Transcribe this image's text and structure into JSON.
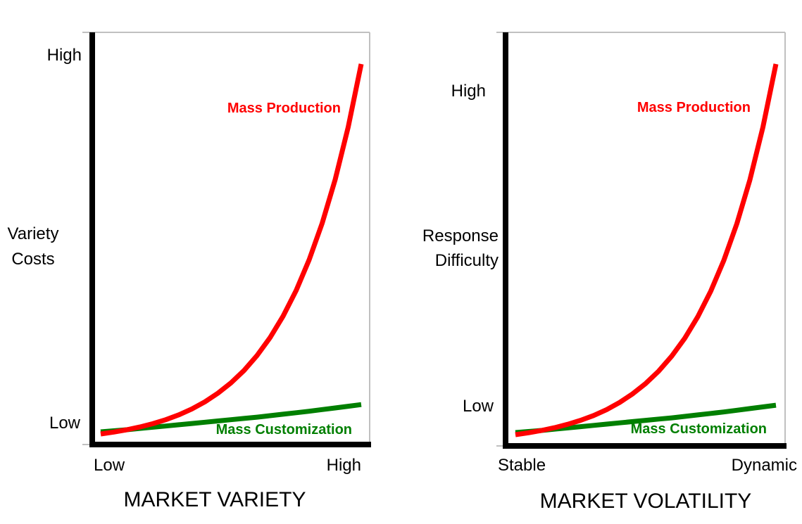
{
  "colors": {
    "mass_production": "#ff0000",
    "mass_customization": "#007f00",
    "axis": "#000000",
    "frame": "#c0c0c0"
  },
  "chart_data": [
    {
      "type": "line",
      "title": "MARKET VARIETY",
      "ylabel": [
        "Variety",
        "Costs"
      ],
      "x_tick_labels": [
        "Low",
        "High"
      ],
      "y_tick_labels": [
        "Low",
        "High"
      ],
      "x": [
        0,
        0.5,
        1,
        1.5,
        2,
        2.5,
        3,
        3.5,
        4,
        4.5,
        5,
        5.5,
        6,
        6.5,
        7,
        7.5,
        8,
        8.5,
        9,
        9.5,
        10
      ],
      "series": [
        {
          "name": "Mass Production",
          "color": "#ff0000",
          "values": [
            0.1,
            0.19,
            0.3,
            0.43,
            0.59,
            0.78,
            1.01,
            1.29,
            1.63,
            2.04,
            2.53,
            3.12,
            3.83,
            4.68,
            5.7,
            6.92,
            8.38,
            10.12,
            12.2,
            14.7,
            17.7
          ]
        },
        {
          "name": "Mass Customization",
          "color": "#007f00",
          "values": [
            0.2,
            0.25,
            0.3,
            0.36,
            0.42,
            0.48,
            0.54,
            0.6,
            0.66,
            0.72,
            0.78,
            0.84,
            0.9,
            0.97,
            1.04,
            1.11,
            1.18,
            1.26,
            1.34,
            1.42,
            1.5
          ]
        }
      ],
      "ylim": [
        0,
        18.8
      ],
      "xlim": [
        0,
        10.4
      ],
      "grid": false,
      "legend": "inline-labels"
    },
    {
      "type": "line",
      "title": "MARKET VOLATILITY",
      "ylabel": [
        "Response",
        "Difficulty"
      ],
      "x_tick_labels": [
        "Stable",
        "Dynamic"
      ],
      "y_tick_labels": [
        "Low",
        "High"
      ],
      "x": [
        0,
        0.5,
        1,
        1.5,
        2,
        2.5,
        3,
        3.5,
        4,
        4.5,
        5,
        5.5,
        6,
        6.5,
        7,
        7.5,
        8,
        8.5,
        9,
        9.5,
        10
      ],
      "series": [
        {
          "name": "Mass Production",
          "color": "#ff0000",
          "values": [
            0.1,
            0.19,
            0.3,
            0.43,
            0.59,
            0.78,
            1.01,
            1.29,
            1.63,
            2.04,
            2.53,
            3.12,
            3.83,
            4.68,
            5.7,
            6.92,
            8.38,
            10.12,
            12.2,
            14.7,
            17.7
          ]
        },
        {
          "name": "Mass Customization",
          "color": "#007f00",
          "values": [
            0.2,
            0.25,
            0.3,
            0.36,
            0.42,
            0.48,
            0.54,
            0.6,
            0.66,
            0.72,
            0.78,
            0.84,
            0.9,
            0.97,
            1.04,
            1.11,
            1.18,
            1.26,
            1.34,
            1.42,
            1.5
          ]
        }
      ],
      "ylim": [
        0,
        18.8
      ],
      "xlim": [
        0,
        10.4
      ],
      "grid": false,
      "legend": "inline-labels"
    }
  ]
}
